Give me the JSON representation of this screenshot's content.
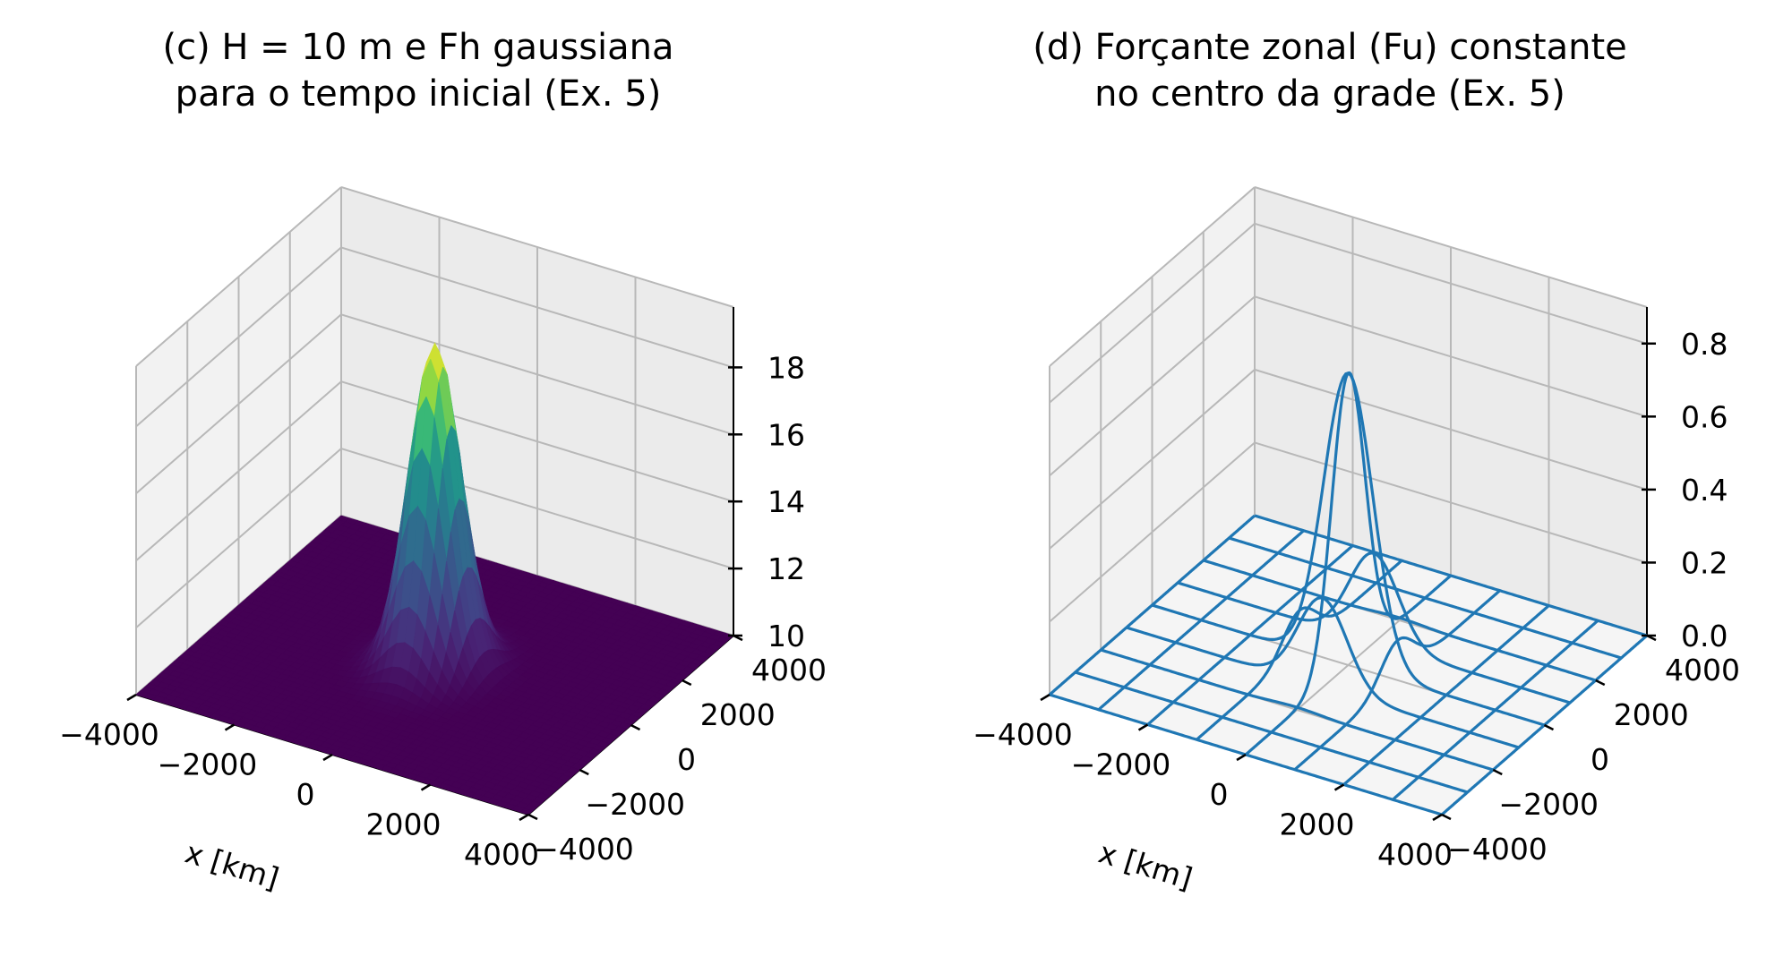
{
  "chart_data": [
    {
      "type": "surface",
      "title_line1": "(c) H = 10 m e Fh gaussiana",
      "title_line2": "para o tempo inicial (Ex. 5)",
      "xlabel": "x [km]",
      "ylabel": "",
      "zlabel": "",
      "xlim": [
        -4000,
        4000
      ],
      "ylim": [
        -4000,
        4000
      ],
      "zlim": [
        10,
        19.8
      ],
      "x_ticks": [
        -4000,
        -2000,
        0,
        2000,
        4000
      ],
      "y_ticks": [
        -4000,
        -2000,
        0,
        2000,
        4000
      ],
      "z_ticks": [
        10,
        12,
        14,
        16,
        18
      ],
      "x_tick_labels": [
        "−4000",
        "−2000",
        "0",
        "2000",
        "4000"
      ],
      "y_tick_labels": [
        "−4000",
        "−2000",
        "0",
        "2000",
        "4000"
      ],
      "z_tick_labels": [
        "10",
        "12",
        "14",
        "16",
        "18"
      ],
      "surface": {
        "base": 10,
        "peak": 19.6,
        "center_x": 0,
        "center_y": 0,
        "sigma_x": 450,
        "sigma_y": 600,
        "colormap": "viridis"
      },
      "grid": true
    },
    {
      "type": "wireframe",
      "title_line1": "(d) Forçante zonal (Fu) constante",
      "title_line2": "no centro da grade (Ex. 5)",
      "xlabel": "x [km]",
      "ylabel": "",
      "zlabel": "",
      "xlim": [
        -4000,
        4000
      ],
      "ylim": [
        -4000,
        4000
      ],
      "zlim": [
        0,
        0.9
      ],
      "x_ticks": [
        -4000,
        -2000,
        0,
        2000,
        4000
      ],
      "y_ticks": [
        -4000,
        -2000,
        0,
        2000,
        4000
      ],
      "z_ticks": [
        0,
        0.2,
        0.4,
        0.6,
        0.8
      ],
      "x_tick_labels": [
        "−4000",
        "−2000",
        "0",
        "2000",
        "4000"
      ],
      "y_tick_labels": [
        "−4000",
        "−2000",
        "0",
        "2000",
        "4000"
      ],
      "z_tick_labels": [
        "0.0",
        "0.2",
        "0.4",
        "0.6",
        "0.8"
      ],
      "surface": {
        "base": 0,
        "peak": 0.8,
        "center_x": 0,
        "center_y": 0,
        "sigma_x": 500,
        "sigma_y": 650
      },
      "wire_color": "#1f77b4",
      "grid": true
    }
  ]
}
